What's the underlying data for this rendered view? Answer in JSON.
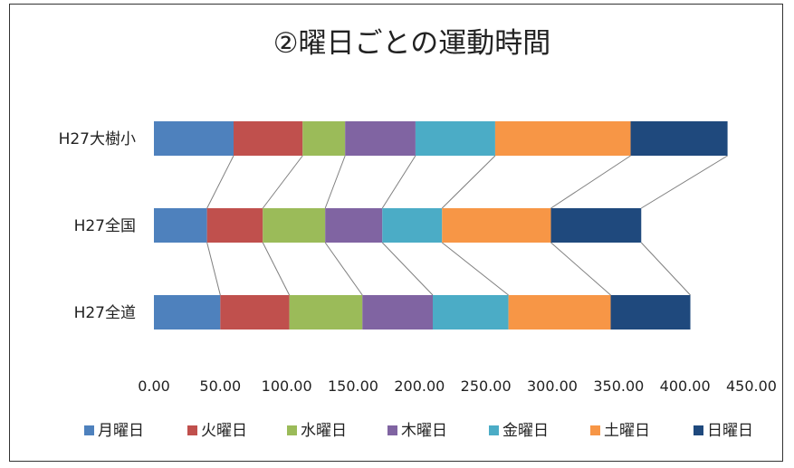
{
  "chart_data": {
    "type": "bar",
    "orientation": "horizontal",
    "stacked": true,
    "title": "②曜日ごとの運動時間",
    "categories": [
      "H27大樹小",
      "H27全国",
      "H27全道"
    ],
    "series": [
      {
        "name": "月曜日",
        "color": "#4e81bd",
        "values": [
          60,
          40,
          50
        ]
      },
      {
        "name": "火曜日",
        "color": "#c0504d",
        "values": [
          52,
          42,
          52
        ]
      },
      {
        "name": "水曜日",
        "color": "#9bbb59",
        "values": [
          32,
          47,
          55
        ]
      },
      {
        "name": "木曜日",
        "color": "#8064a2",
        "values": [
          53,
          43,
          53
        ]
      },
      {
        "name": "金曜日",
        "color": "#4bacc6",
        "values": [
          60,
          45,
          57
        ]
      },
      {
        "name": "土曜日",
        "color": "#f79646",
        "values": [
          102,
          82,
          77
        ]
      },
      {
        "name": "日曜日",
        "color": "#1f497d",
        "values": [
          73,
          68,
          60
        ]
      }
    ],
    "xlim": [
      0,
      450
    ],
    "xticks": [
      "0.00",
      "50.00",
      "100.00",
      "150.00",
      "200.00",
      "250.00",
      "300.00",
      "350.00",
      "400.00",
      "450.00"
    ],
    "series_lines": true,
    "grid": false,
    "legend_position": "bottom"
  }
}
